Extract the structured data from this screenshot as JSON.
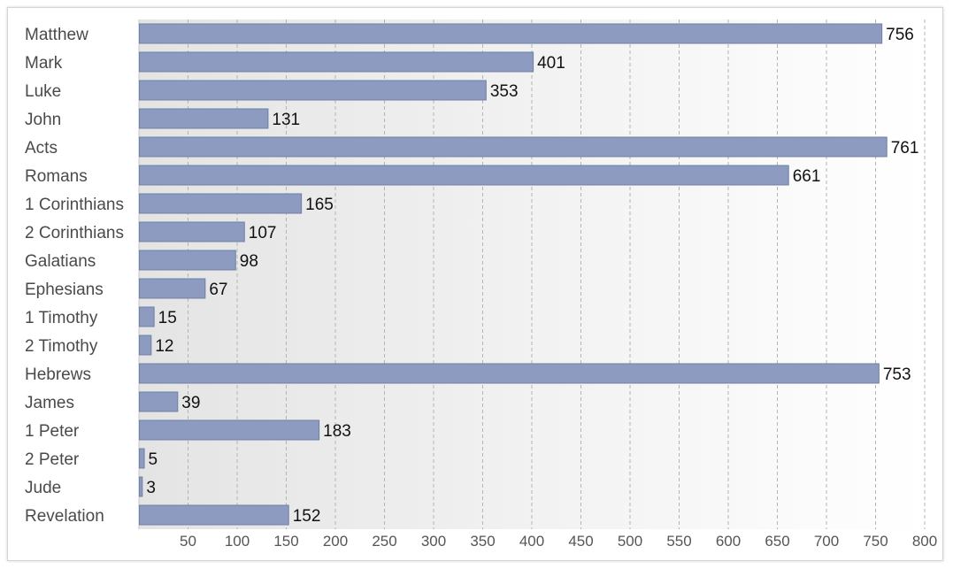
{
  "chart_data": {
    "type": "bar",
    "orientation": "horizontal",
    "title": "",
    "xlabel": "",
    "ylabel": "",
    "categories": [
      "Matthew",
      "Mark",
      "Luke",
      "John",
      "Acts",
      "Romans",
      "1 Corinthians",
      "2 Corinthians",
      "Galatians",
      "Ephesians",
      "1 Timothy",
      "2 Timothy",
      "Hebrews",
      "James",
      "1 Peter",
      "2 Peter",
      "Jude",
      "Revelation"
    ],
    "values": [
      756,
      401,
      353,
      131,
      761,
      661,
      165,
      107,
      98,
      67,
      15,
      12,
      753,
      39,
      183,
      5,
      3,
      152
    ],
    "xlim": [
      0,
      800
    ],
    "xticks": [
      50,
      100,
      150,
      200,
      250,
      300,
      350,
      400,
      450,
      500,
      550,
      600,
      650,
      700,
      750,
      800
    ],
    "grid": "vertical dashed",
    "legend": "none",
    "data_labels": true,
    "colors": {
      "bar_fill": "#8c9bbf",
      "bar_stroke": "#6f7fa6",
      "grid": "#b4b4b4",
      "plot_bg_start": "#e6e6e6",
      "plot_bg_end": "#ffffff"
    }
  }
}
